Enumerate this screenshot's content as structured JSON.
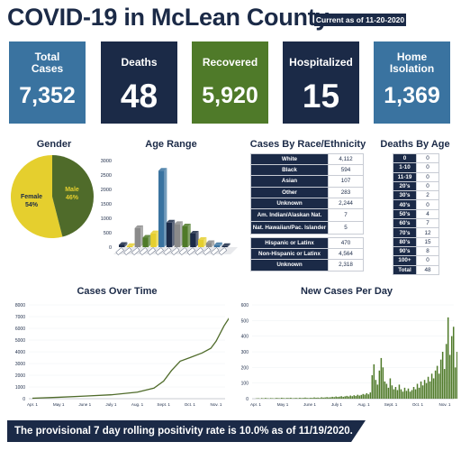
{
  "title": "COVID-19 in McLean County",
  "as_of": "Current as of 11-20-2020",
  "cards": [
    {
      "label": "Total Cases",
      "value": "7,352",
      "color": "#3a73a0"
    },
    {
      "label": "Deaths",
      "value": "48",
      "color": "#1b2a47"
    },
    {
      "label": "Recovered",
      "value": "5,920",
      "color": "#4f7a29"
    },
    {
      "label": "Hospitalized",
      "value": "15",
      "color": "#1b2a47"
    },
    {
      "label": "Home Isolation",
      "value": "1,369",
      "color": "#3a73a0"
    }
  ],
  "gender": {
    "title": "Gender",
    "female_label": "Female",
    "female_pct": "54%",
    "male_label": "Male",
    "male_pct": "46%",
    "female_color": "#e5cf2e",
    "male_color": "#4f6b2a"
  },
  "age_range": {
    "title": "Age Range",
    "y_ticks": [
      "3000",
      "2500",
      "2000",
      "1500",
      "1000",
      "500",
      "0"
    ]
  },
  "race": {
    "title": "Cases By Race/Ethnicity",
    "rows": [
      {
        "label": "White",
        "value": "4,112"
      },
      {
        "label": "Black",
        "value": "594"
      },
      {
        "label": "Asian",
        "value": "107"
      },
      {
        "label": "Other",
        "value": "283"
      },
      {
        "label": "Unknown",
        "value": "2,244"
      },
      {
        "label": "Am. Indian/Alaskan Nat.",
        "value": "7"
      },
      {
        "label": "Nat. Hawaiian/Pac. Islander",
        "value": "5"
      }
    ],
    "rows2": [
      {
        "label": "Hispanic or Latinx",
        "value": "470"
      },
      {
        "label": "Non-Hispanic or Latinx",
        "value": "4,564"
      },
      {
        "label": "Unknown",
        "value": "2,318"
      }
    ]
  },
  "deaths_by_age": {
    "title": "Deaths By Age",
    "rows": [
      {
        "label": "0",
        "value": "0"
      },
      {
        "label": "1-10",
        "value": "0"
      },
      {
        "label": "11-19",
        "value": "0"
      },
      {
        "label": "20's",
        "value": "0"
      },
      {
        "label": "30's",
        "value": "2"
      },
      {
        "label": "40's",
        "value": "0"
      },
      {
        "label": "50's",
        "value": "4"
      },
      {
        "label": "60's",
        "value": "7"
      },
      {
        "label": "70's",
        "value": "12"
      },
      {
        "label": "80's",
        "value": "15"
      },
      {
        "label": "90's",
        "value": "8"
      },
      {
        "label": "100+",
        "value": "0"
      },
      {
        "label": "Total",
        "value": "48"
      }
    ]
  },
  "cases_over_time": {
    "title": "Cases Over Time",
    "y_ticks": [
      "8000",
      "7000",
      "6000",
      "5000",
      "4000",
      "3000",
      "2000",
      "1000",
      "0"
    ],
    "x_ticks": [
      "Apr. 1",
      "May 1",
      "June 1",
      "July 1",
      "Aug. 1",
      "Sept. 1",
      "Oct. 1",
      "Nov. 1"
    ]
  },
  "new_cases": {
    "title": "New Cases Per Day",
    "y_ticks": [
      "600",
      "500",
      "400",
      "300",
      "200",
      "100",
      "0"
    ],
    "x_ticks": [
      "Apr. 1",
      "May 1",
      "June 1",
      "July 1",
      "Aug. 1",
      "Sept. 1",
      "Oct. 1",
      "Nov. 1"
    ]
  },
  "banner": "The provisional 7 day rolling positivity rate is 10.0% as of 11/19/2020.",
  "chart_data": [
    {
      "type": "pie",
      "title": "Gender",
      "labels": [
        "Female",
        "Male"
      ],
      "values": [
        54,
        46
      ]
    },
    {
      "type": "bar",
      "title": "Age Range",
      "ylim": [
        0,
        3000
      ],
      "values": [
        80,
        40,
        660,
        330,
        480,
        2650,
        850,
        800,
        720,
        470,
        250,
        140,
        70,
        40
      ],
      "colors": [
        "#1b2a47",
        "#e5cf2e",
        "#8a8a8a",
        "#4f7a29",
        "#e5cf2e",
        "#3a73a0",
        "#1b2a47",
        "#8a8a8a",
        "#4f7a29",
        "#1b2a47",
        "#e5cf2e",
        "#8a8a8a",
        "#3a73a0",
        "#1b2a47"
      ]
    },
    {
      "type": "line",
      "title": "Cases Over Time",
      "x": [
        "Apr. 1",
        "May 1",
        "June 1",
        "July 1",
        "Aug. 1",
        "Aug. 20",
        "Sept. 1",
        "Sept. 10",
        "Sept. 20",
        "Oct. 1",
        "Oct. 15",
        "Oct. 25",
        "Nov. 1",
        "Nov. 10",
        "Nov. 20"
      ],
      "values": [
        40,
        120,
        220,
        330,
        560,
        900,
        1500,
        2400,
        3200,
        3500,
        3900,
        4300,
        4900,
        6200,
        7352
      ],
      "ylim": [
        0,
        8000
      ]
    },
    {
      "type": "bar",
      "title": "New Cases Per Day",
      "ylim": [
        0,
        600
      ],
      "x_range": [
        "Apr. 1",
        "Nov. 20"
      ],
      "values": [
        2,
        3,
        1,
        4,
        2,
        5,
        3,
        2,
        4,
        3,
        2,
        5,
        4,
        3,
        6,
        4,
        3,
        5,
        4,
        6,
        3,
        4,
        5,
        3,
        6,
        4,
        5,
        7,
        5,
        4,
        6,
        5,
        8,
        6,
        7,
        5,
        9,
        7,
        8,
        10,
        8,
        9,
        12,
        10,
        14,
        11,
        13,
        16,
        12,
        15,
        18,
        14,
        20,
        16,
        22,
        18,
        25,
        20,
        24,
        30,
        26,
        35,
        28,
        40,
        150,
        220,
        120,
        90,
        180,
        260,
        200,
        110,
        95,
        70,
        130,
        85,
        60,
        75,
        55,
        90,
        60,
        45,
        70,
        50,
        65,
        45,
        55,
        75,
        60,
        95,
        70,
        110,
        85,
        120,
        100,
        140,
        110,
        160,
        130,
        180,
        210,
        160,
        250,
        300,
        190,
        350,
        520,
        280,
        400,
        460,
        200,
        300,
        140,
        180
      ]
    }
  ]
}
